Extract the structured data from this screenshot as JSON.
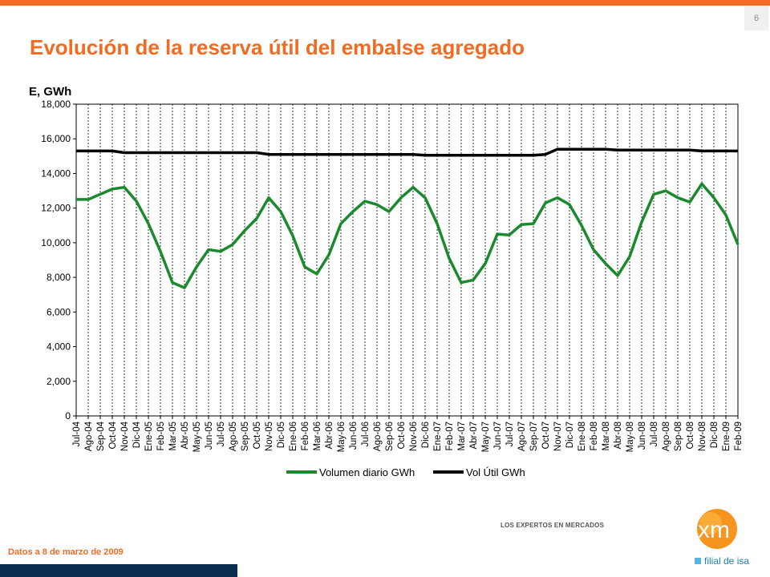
{
  "page": {
    "number": "6"
  },
  "title": "Evolución de la reserva útil del embalse agregado",
  "footnote": "Datos a 8 de marzo de 2009",
  "logo": {
    "tagline": "LOS EXPERTOS EN MERCADOS",
    "mark": "xm",
    "subtitle": "filial de isa"
  },
  "colors": {
    "accent": "#F26B21",
    "navy": "#0B2D4F",
    "green_series": "#1B8A2E",
    "black_series": "#000000",
    "logo_blue": "#1A7FA8"
  },
  "chart_data": {
    "type": "line",
    "title": "",
    "ylabel": "E, GWh",
    "xlabel": "",
    "ylim": [
      0,
      18000
    ],
    "yticks": [
      "0",
      "2,000",
      "4,000",
      "6,000",
      "8,000",
      "10,000",
      "12,000",
      "14,000",
      "16,000",
      "18,000"
    ],
    "grid": "vertical dashed",
    "legend": "bottom",
    "categories": [
      "Jul-04",
      "Ago-04",
      "Sep-04",
      "Oct-04",
      "Nov-04",
      "Dic-04",
      "Ene-05",
      "Feb-05",
      "Mar-05",
      "Abr-05",
      "May-05",
      "Jun-05",
      "Jul-05",
      "Ago-05",
      "Sep-05",
      "Oct-05",
      "Nov-05",
      "Dic-05",
      "Ene-06",
      "Feb-06",
      "Mar-06",
      "Abr-06",
      "May-06",
      "Jun-06",
      "Jul-06",
      "Ago-06",
      "Sep-06",
      "Oct-06",
      "Nov-06",
      "Dic-06",
      "Ene-07",
      "Feb-07",
      "Mar-07",
      "Abr-07",
      "May-07",
      "Jun-07",
      "Jul-07",
      "Ago-07",
      "Sep-07",
      "Oct-07",
      "Nov-07",
      "Dic-07",
      "Ene-08",
      "Feb-08",
      "Mar-08",
      "Abr-08",
      "May-08",
      "Jun-08",
      "Jul-08",
      "Ago-08",
      "Sep-08",
      "Oct-08",
      "Nov-08",
      "Dic-08",
      "Ene-09",
      "Feb-09"
    ],
    "series": [
      {
        "name": "Volumen diario GWh",
        "color": "#1B8A2E",
        "values": [
          12500,
          12500,
          12800,
          13100,
          13200,
          12400,
          11100,
          9500,
          7700,
          7400,
          8600,
          9600,
          9500,
          9900,
          10700,
          11400,
          12600,
          11800,
          10400,
          8600,
          8200,
          9300,
          11100,
          11800,
          12400,
          12200,
          11800,
          12600,
          13200,
          12600,
          11100,
          9100,
          7700,
          7850,
          8800,
          10500,
          10450,
          11050,
          11100,
          12300,
          12600,
          12200,
          11000,
          9600,
          8800,
          8100,
          9200,
          11200,
          12800,
          13000,
          12600,
          12350,
          13400,
          12600,
          11600,
          9900
        ]
      },
      {
        "name": "Vol Útil GWh",
        "color": "#000000",
        "values": [
          15300,
          15300,
          15300,
          15300,
          15200,
          15200,
          15200,
          15200,
          15200,
          15200,
          15200,
          15200,
          15200,
          15200,
          15200,
          15200,
          15100,
          15100,
          15100,
          15100,
          15100,
          15100,
          15100,
          15100,
          15100,
          15100,
          15100,
          15100,
          15100,
          15050,
          15050,
          15050,
          15050,
          15050,
          15050,
          15050,
          15050,
          15050,
          15050,
          15100,
          15400,
          15400,
          15400,
          15400,
          15400,
          15350,
          15350,
          15350,
          15350,
          15350,
          15350,
          15350,
          15300,
          15300,
          15300,
          15300
        ]
      }
    ]
  }
}
